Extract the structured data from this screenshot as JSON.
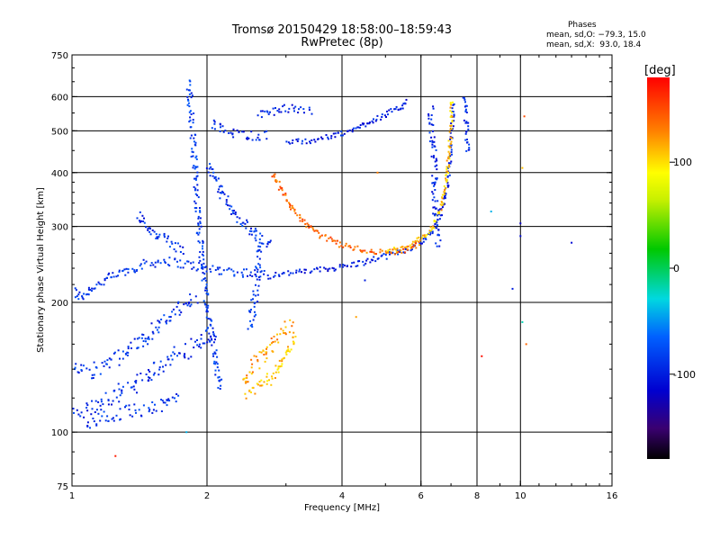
{
  "header": {
    "title": "Tromsø 20150429 18:58:00–18:59:43",
    "subtitle": "RwPretec (8p)"
  },
  "stats": {
    "heading": "Phases",
    "line_o": "mean, sd,O: −79.3, 15.0",
    "line_x": "mean, sd,X:  93.0, 18.4"
  },
  "colorbar": {
    "title": "[deg]",
    "ticks": [
      {
        "value": 100,
        "label": "100"
      },
      {
        "value": 0,
        "label": "0"
      },
      {
        "value": -100,
        "label": "-100"
      }
    ],
    "range": [
      -180,
      180
    ],
    "scale": "rainbow"
  },
  "chart_data": {
    "type": "scatter",
    "title": "Tromsø 20150429 18:58:00–18:59:43",
    "subtitle": "RwPretec (8p)",
    "xlabel": "Frequency [MHz]",
    "ylabel": "Stationary phase Virtual Height [km]",
    "x_scale": "log",
    "y_scale": "log",
    "xlim": [
      1,
      16
    ],
    "ylim": [
      75,
      750
    ],
    "x_ticks": [
      {
        "value": 1,
        "label": "1"
      },
      {
        "value": 2,
        "label": "2"
      },
      {
        "value": 4,
        "label": "4"
      },
      {
        "value": 6,
        "label": "6"
      },
      {
        "value": 8,
        "label": "8"
      },
      {
        "value": 10,
        "label": "10"
      },
      {
        "value": 16,
        "label": "16"
      }
    ],
    "y_ticks": [
      {
        "value": 75,
        "label": "75"
      },
      {
        "value": 100,
        "label": "100"
      },
      {
        "value": 200,
        "label": "200"
      },
      {
        "value": 300,
        "label": "300"
      },
      {
        "value": 400,
        "label": "400"
      },
      {
        "value": 500,
        "label": "500"
      },
      {
        "value": 600,
        "label": "600"
      },
      {
        "value": 750,
        "label": "750"
      }
    ],
    "grid": true,
    "grid_x": [
      2,
      4,
      6,
      8,
      10
    ],
    "grid_y": [
      100,
      200,
      300,
      400,
      500,
      600
    ],
    "color_by": "phase [deg]",
    "traces": [
      {
        "phase": -90,
        "jitter": 0.05,
        "points": [
          [
            1.0,
            215
          ],
          [
            1.04,
            205
          ],
          [
            1.1,
            215
          ],
          [
            1.18,
            225
          ],
          [
            1.3,
            235
          ],
          [
            1.45,
            245
          ],
          [
            1.6,
            250
          ],
          [
            1.8,
            245
          ],
          [
            2.0,
            240
          ],
          [
            2.2,
            237
          ],
          [
            2.5,
            234
          ],
          [
            2.8,
            232
          ]
        ]
      },
      {
        "phase": -100,
        "jitter": 0.03,
        "points": [
          [
            2.8,
            232
          ],
          [
            3.2,
            235
          ],
          [
            3.6,
            238
          ],
          [
            4.0,
            242
          ],
          [
            4.5,
            248
          ],
          [
            5.0,
            256
          ],
          [
            5.5,
            264
          ],
          [
            6.0,
            275
          ],
          [
            6.4,
            295
          ],
          [
            6.7,
            330
          ],
          [
            6.9,
            380
          ],
          [
            7.0,
            450
          ],
          [
            7.05,
            520
          ],
          [
            7.1,
            580
          ]
        ]
      },
      {
        "phase": 110,
        "jitter": 0.03,
        "points": [
          [
            5.0,
            262
          ],
          [
            5.5,
            268
          ],
          [
            6.0,
            280
          ],
          [
            6.4,
            300
          ],
          [
            6.7,
            340
          ],
          [
            6.85,
            390
          ],
          [
            6.95,
            450
          ],
          [
            7.0,
            520
          ],
          [
            7.05,
            590
          ]
        ]
      },
      {
        "phase": 140,
        "jitter": 0.03,
        "points": [
          [
            2.8,
            400
          ],
          [
            2.95,
            360
          ],
          [
            3.1,
            330
          ],
          [
            3.3,
            305
          ],
          [
            3.6,
            285
          ],
          [
            4.0,
            272
          ],
          [
            4.4,
            265
          ],
          [
            4.8,
            262
          ],
          [
            5.2,
            262
          ],
          [
            5.6,
            266
          ],
          [
            6.0,
            274
          ]
        ]
      },
      {
        "phase": -95,
        "jitter": 0.06,
        "points": [
          [
            6.3,
            560
          ],
          [
            6.4,
            450
          ],
          [
            6.45,
            360
          ],
          [
            6.5,
            300
          ],
          [
            6.6,
            270
          ]
        ]
      },
      {
        "phase": -100,
        "jitter": 0.03,
        "points": [
          [
            3.0,
            470
          ],
          [
            3.4,
            475
          ],
          [
            3.8,
            485
          ],
          [
            4.2,
            500
          ],
          [
            4.6,
            525
          ],
          [
            5.0,
            545
          ],
          [
            5.4,
            565
          ],
          [
            5.6,
            590
          ]
        ]
      },
      {
        "phase": -100,
        "jitter": 0.04,
        "points": [
          [
            2.6,
            545
          ],
          [
            2.85,
            555
          ],
          [
            3.0,
            565
          ],
          [
            3.2,
            560
          ],
          [
            3.45,
            555
          ]
        ]
      },
      {
        "phase": -95,
        "jitter": 0.05,
        "points": [
          [
            2.05,
            520
          ],
          [
            2.2,
            500
          ],
          [
            2.4,
            490
          ],
          [
            2.6,
            485
          ],
          [
            2.75,
            490
          ]
        ]
      },
      {
        "phase": -85,
        "jitter": 0.06,
        "points": [
          [
            1.82,
            650
          ],
          [
            1.84,
            560
          ],
          [
            1.86,
            480
          ],
          [
            1.88,
            400
          ],
          [
            1.9,
            340
          ],
          [
            1.92,
            290
          ],
          [
            1.95,
            250
          ],
          [
            1.98,
            220
          ],
          [
            2.0,
            200
          ],
          [
            2.02,
            180
          ],
          [
            2.05,
            160
          ],
          [
            2.1,
            140
          ],
          [
            2.15,
            125
          ]
        ]
      },
      {
        "phase": -90,
        "jitter": 0.06,
        "points": [
          [
            1.4,
            320
          ],
          [
            1.5,
            295
          ],
          [
            1.6,
            280
          ],
          [
            1.7,
            270
          ],
          [
            1.8,
            265
          ]
        ]
      },
      {
        "phase": -90,
        "jitter": 0.06,
        "points": [
          [
            2.0,
            420
          ],
          [
            2.1,
            380
          ],
          [
            2.2,
            345
          ],
          [
            2.35,
            315
          ],
          [
            2.5,
            295
          ],
          [
            2.65,
            280
          ],
          [
            2.8,
            270
          ]
        ]
      },
      {
        "phase": -95,
        "jitter": 0.09,
        "points": [
          [
            1.0,
            115
          ],
          [
            1.1,
            112
          ],
          [
            1.2,
            118
          ],
          [
            1.3,
            125
          ],
          [
            1.4,
            130
          ],
          [
            1.5,
            138
          ],
          [
            1.6,
            145
          ],
          [
            1.7,
            150
          ],
          [
            1.8,
            155
          ],
          [
            1.9,
            160
          ],
          [
            2.0,
            165
          ],
          [
            2.1,
            172
          ]
        ]
      },
      {
        "phase": -90,
        "jitter": 0.08,
        "points": [
          [
            1.0,
            140
          ],
          [
            1.1,
            138
          ],
          [
            1.2,
            145
          ],
          [
            1.3,
            150
          ],
          [
            1.4,
            160
          ],
          [
            1.5,
            172
          ],
          [
            1.6,
            182
          ],
          [
            1.7,
            190
          ],
          [
            1.8,
            198
          ],
          [
            1.9,
            205
          ]
        ]
      },
      {
        "phase": -90,
        "jitter": 0.07,
        "points": [
          [
            1.08,
            105
          ],
          [
            1.15,
            108
          ],
          [
            1.25,
            110
          ],
          [
            1.35,
            112
          ],
          [
            1.45,
            113
          ],
          [
            1.55,
            115
          ],
          [
            1.65,
            118
          ],
          [
            1.75,
            120
          ]
        ]
      },
      {
        "phase": 120,
        "jitter": 0.08,
        "points": [
          [
            2.4,
            130
          ],
          [
            2.5,
            140
          ],
          [
            2.6,
            148
          ],
          [
            2.7,
            155
          ],
          [
            2.8,
            162
          ],
          [
            2.9,
            168
          ],
          [
            3.0,
            175
          ],
          [
            3.1,
            180
          ]
        ]
      },
      {
        "phase": 110,
        "jitter": 0.06,
        "points": [
          [
            2.45,
            122
          ],
          [
            2.55,
            125
          ],
          [
            2.65,
            128
          ],
          [
            2.75,
            132
          ],
          [
            2.85,
            138
          ],
          [
            3.0,
            150
          ],
          [
            3.1,
            160
          ],
          [
            3.15,
            170
          ]
        ]
      },
      {
        "phase": -85,
        "jitter": 0.07,
        "points": [
          [
            2.5,
            175
          ],
          [
            2.55,
            200
          ],
          [
            2.6,
            230
          ],
          [
            2.62,
            260
          ],
          [
            2.6,
            280
          ]
        ]
      },
      {
        "phase": -95,
        "jitter": 0.04,
        "points": [
          [
            7.5,
            600
          ],
          [
            7.55,
            560
          ],
          [
            7.6,
            500
          ],
          [
            7.62,
            440
          ]
        ]
      }
    ],
    "scatter": [
      {
        "x": 10.2,
        "y": 540,
        "phase": 150
      },
      {
        "x": 10.1,
        "y": 410,
        "phase": 110
      },
      {
        "x": 10.0,
        "y": 305,
        "phase": -120
      },
      {
        "x": 10.0,
        "y": 285,
        "phase": -110
      },
      {
        "x": 9.6,
        "y": 215,
        "phase": -100
      },
      {
        "x": 10.1,
        "y": 180,
        "phase": -20
      },
      {
        "x": 8.6,
        "y": 325,
        "phase": -40
      },
      {
        "x": 8.2,
        "y": 150,
        "phase": 175
      },
      {
        "x": 10.3,
        "y": 160,
        "phase": 140
      },
      {
        "x": 13.0,
        "y": 275,
        "phase": -110
      },
      {
        "x": 1.25,
        "y": 88,
        "phase": 170
      },
      {
        "x": 1.8,
        "y": 100,
        "phase": -40
      },
      {
        "x": 4.3,
        "y": 185,
        "phase": 120
      },
      {
        "x": 4.8,
        "y": 400,
        "phase": 130
      },
      {
        "x": 4.5,
        "y": 225,
        "phase": -100
      }
    ]
  }
}
